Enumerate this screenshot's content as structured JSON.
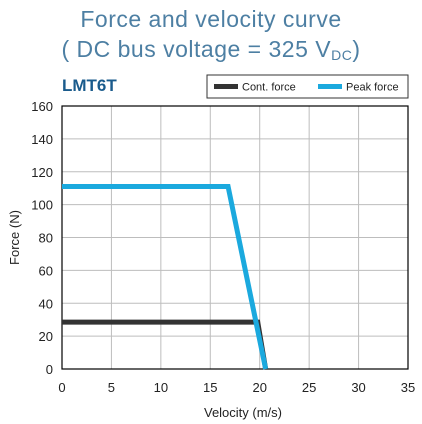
{
  "title_line1": "Force and velocity curve",
  "title_line2_main": "( DC bus voltage = 325 V",
  "title_line2_sub": "DC",
  "title_line2_end": ")",
  "model": "LMT6T",
  "chart_data": {
    "type": "line",
    "xlabel": "Velocity (m/s)",
    "ylabel": "Force (N)",
    "xlim": [
      0,
      35
    ],
    "ylim": [
      0,
      160
    ],
    "xticks": [
      0,
      5,
      10,
      15,
      20,
      25,
      30,
      35
    ],
    "yticks": [
      0,
      20,
      40,
      60,
      80,
      100,
      120,
      140,
      160
    ],
    "grid": true,
    "legend": "top-right",
    "series": [
      {
        "name": "Cont. force",
        "color": "#333333",
        "x": [
          0,
          19.8,
          20.6
        ],
        "y": [
          28.5,
          28.5,
          0
        ]
      },
      {
        "name": "Peak force",
        "color": "#1ba9de",
        "x": [
          0,
          16.8,
          20.6
        ],
        "y": [
          111,
          111,
          0
        ]
      }
    ]
  }
}
